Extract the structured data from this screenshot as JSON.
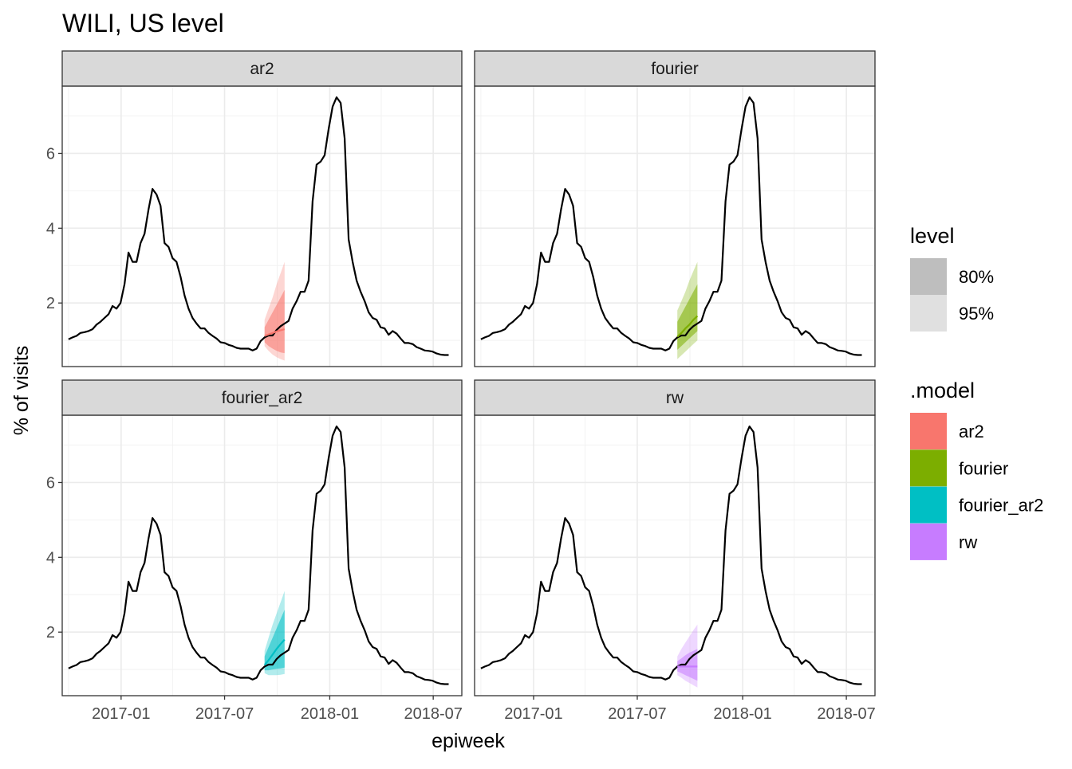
{
  "chart_data": {
    "type": "line",
    "title": "WILI, US level",
    "xlabel": "epiweek",
    "ylabel": "% of visits",
    "x_ticks": [
      "2017-01",
      "2017-07",
      "2018-01",
      "2018-07"
    ],
    "y_ticks": [
      2,
      4,
      6
    ],
    "xlim": [
      "2016-09-20",
      "2018-08-20"
    ],
    "ylim": [
      0.3,
      7.8
    ],
    "grid": true,
    "facets": [
      {
        "label": "ar2",
        "model": "ar2"
      },
      {
        "label": "fourier",
        "model": "fourier"
      },
      {
        "label": "fourier_ar2",
        "model": "fourier_ar2"
      },
      {
        "label": "rw",
        "model": "rw"
      }
    ],
    "observed": {
      "name": "wili",
      "x": [
        "2016-10-01",
        "2016-10-08",
        "2016-10-15",
        "2016-10-22",
        "2016-10-29",
        "2016-11-05",
        "2016-11-12",
        "2016-11-19",
        "2016-11-26",
        "2016-12-03",
        "2016-12-10",
        "2016-12-17",
        "2016-12-24",
        "2016-12-31",
        "2017-01-07",
        "2017-01-14",
        "2017-01-21",
        "2017-01-28",
        "2017-02-04",
        "2017-02-11",
        "2017-02-18",
        "2017-02-25",
        "2017-03-04",
        "2017-03-11",
        "2017-03-18",
        "2017-03-25",
        "2017-04-01",
        "2017-04-08",
        "2017-04-15",
        "2017-04-22",
        "2017-04-29",
        "2017-05-06",
        "2017-05-13",
        "2017-05-20",
        "2017-05-27",
        "2017-06-03",
        "2017-06-10",
        "2017-06-17",
        "2017-06-24",
        "2017-07-01",
        "2017-07-08",
        "2017-07-15",
        "2017-07-22",
        "2017-07-29",
        "2017-08-05",
        "2017-08-12",
        "2017-08-19",
        "2017-08-26",
        "2017-09-02",
        "2017-09-09",
        "2017-09-16",
        "2017-09-23",
        "2017-09-30",
        "2017-10-07",
        "2017-10-14",
        "2017-10-21",
        "2017-10-28",
        "2017-11-04",
        "2017-11-11",
        "2017-11-18",
        "2017-11-25",
        "2017-12-02",
        "2017-12-09",
        "2017-12-16",
        "2017-12-23",
        "2017-12-30",
        "2018-01-06",
        "2018-01-13",
        "2018-01-20",
        "2018-01-27",
        "2018-02-03",
        "2018-02-10",
        "2018-02-17",
        "2018-02-24",
        "2018-03-03",
        "2018-03-10",
        "2018-03-17",
        "2018-03-24",
        "2018-03-31",
        "2018-04-07",
        "2018-04-14",
        "2018-04-21",
        "2018-04-28",
        "2018-05-05",
        "2018-05-12",
        "2018-05-19",
        "2018-05-26",
        "2018-06-02",
        "2018-06-09",
        "2018-06-16",
        "2018-06-23",
        "2018-06-30",
        "2018-07-07",
        "2018-07-14",
        "2018-07-21",
        "2018-07-28"
      ],
      "y": [
        1.03,
        1.08,
        1.12,
        1.2,
        1.22,
        1.25,
        1.3,
        1.42,
        1.5,
        1.6,
        1.7,
        1.92,
        1.85,
        2.0,
        2.5,
        3.35,
        3.1,
        3.1,
        3.6,
        3.85,
        4.5,
        5.05,
        4.9,
        4.6,
        3.6,
        3.5,
        3.2,
        3.1,
        2.7,
        2.2,
        1.85,
        1.6,
        1.45,
        1.32,
        1.32,
        1.2,
        1.12,
        1.05,
        0.95,
        0.93,
        0.88,
        0.85,
        0.8,
        0.78,
        0.78,
        0.78,
        0.73,
        0.78,
        0.98,
        1.08,
        1.13,
        1.13,
        1.28,
        1.38,
        1.45,
        1.52,
        1.85,
        2.05,
        2.3,
        2.3,
        2.6,
        4.72,
        5.7,
        5.78,
        5.95,
        6.65,
        7.25,
        7.5,
        7.35,
        6.4,
        3.7,
        3.1,
        2.6,
        2.3,
        2.05,
        1.75,
        1.6,
        1.55,
        1.35,
        1.32,
        1.15,
        1.25,
        1.18,
        1.05,
        0.93,
        0.93,
        0.9,
        0.82,
        0.78,
        0.73,
        0.72,
        0.7,
        0.65,
        0.62,
        0.61,
        0.61
      ]
    },
    "forecasts": [
      {
        "model": "ar2",
        "color": "#F8766D",
        "x": [
          "2017-09-09",
          "2017-09-16",
          "2017-09-23",
          "2017-09-30",
          "2017-10-07",
          "2017-10-14"
        ],
        "mean": [
          1.12,
          1.16,
          1.2,
          1.24,
          1.27,
          1.3
        ],
        "lo80": [
          0.95,
          0.85,
          0.78,
          0.72,
          0.68,
          0.66
        ],
        "hi80": [
          1.35,
          1.55,
          1.75,
          1.95,
          2.15,
          2.35
        ],
        "lo95": [
          0.85,
          0.72,
          0.62,
          0.55,
          0.5,
          0.46
        ],
        "hi95": [
          1.55,
          1.85,
          2.15,
          2.5,
          2.8,
          3.1
        ]
      },
      {
        "model": "fourier",
        "color": "#7CAE00",
        "x": [
          "2017-09-09",
          "2017-09-16",
          "2017-09-23",
          "2017-09-30",
          "2017-10-07",
          "2017-10-14"
        ],
        "mean": [
          1.1,
          1.2,
          1.32,
          1.42,
          1.55,
          1.65
        ],
        "lo80": [
          0.75,
          0.85,
          0.95,
          1.05,
          1.15,
          1.25
        ],
        "hi80": [
          1.5,
          1.7,
          1.9,
          2.1,
          2.3,
          2.5
        ],
        "lo95": [
          0.5,
          0.6,
          0.7,
          0.8,
          0.9,
          1.0
        ],
        "hi95": [
          1.8,
          2.05,
          2.3,
          2.6,
          2.85,
          3.1
        ]
      },
      {
        "model": "fourier_ar2",
        "color": "#00BFC4",
        "x": [
          "2017-09-09",
          "2017-09-16",
          "2017-09-23",
          "2017-09-30",
          "2017-10-07",
          "2017-10-14"
        ],
        "mean": [
          1.12,
          1.25,
          1.4,
          1.55,
          1.68,
          1.8
        ],
        "lo80": [
          0.98,
          0.98,
          1.0,
          1.02,
          1.03,
          1.05
        ],
        "hi80": [
          1.35,
          1.6,
          1.85,
          2.1,
          2.35,
          2.6
        ],
        "lo95": [
          0.9,
          0.85,
          0.85,
          0.85,
          0.86,
          0.88
        ],
        "hi95": [
          1.5,
          1.85,
          2.2,
          2.5,
          2.8,
          3.1
        ]
      },
      {
        "model": "rw",
        "color": "#C77CFF",
        "x": [
          "2017-09-09",
          "2017-09-16",
          "2017-09-23",
          "2017-09-30",
          "2017-10-07",
          "2017-10-14"
        ],
        "mean": [
          1.08,
          1.08,
          1.08,
          1.08,
          1.08,
          1.08
        ],
        "lo80": [
          0.95,
          0.9,
          0.85,
          0.8,
          0.75,
          0.7
        ],
        "hi80": [
          1.22,
          1.3,
          1.38,
          1.45,
          1.5,
          1.55
        ],
        "lo95": [
          0.85,
          0.78,
          0.7,
          0.64,
          0.58,
          0.52
        ],
        "hi95": [
          1.35,
          1.55,
          1.72,
          1.88,
          2.05,
          2.2
        ]
      }
    ],
    "legend": {
      "level": {
        "title": "level",
        "items": [
          {
            "label": "80%",
            "color": "#BEBEBE"
          },
          {
            "label": "95%",
            "color": "#E0E0E0"
          }
        ]
      },
      "model": {
        "title": ".model",
        "items": [
          {
            "label": "ar2",
            "color": "#F8766D"
          },
          {
            "label": "fourier",
            "color": "#7CAE00"
          },
          {
            "label": "fourier_ar2",
            "color": "#00BFC4"
          },
          {
            "label": "rw",
            "color": "#C77CFF"
          }
        ]
      },
      "placement": "right"
    }
  }
}
